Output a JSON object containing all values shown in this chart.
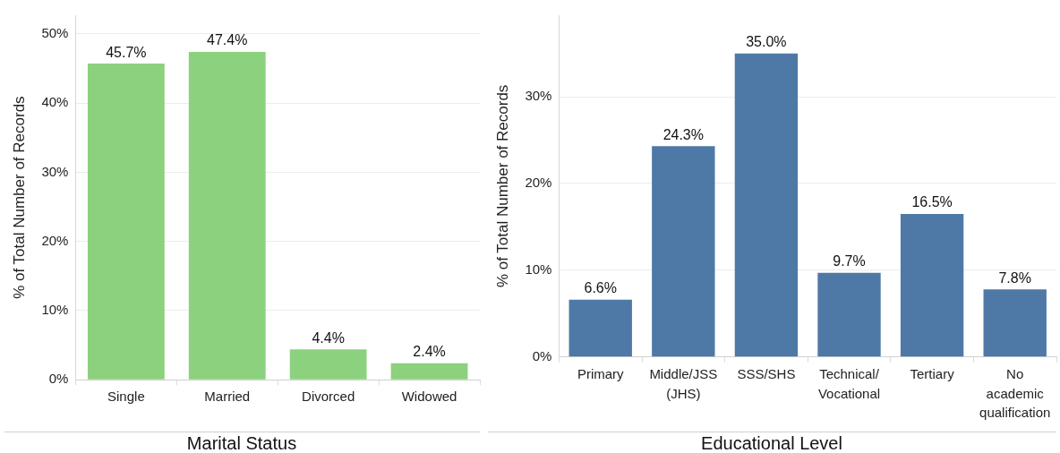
{
  "chart_data": [
    {
      "type": "bar",
      "categories": [
        "Single",
        "Married",
        "Divorced",
        "Widowed"
      ],
      "values": [
        45.7,
        47.4,
        4.4,
        2.4
      ],
      "value_labels": [
        "45.7%",
        "47.4%",
        "4.4%",
        "2.4%"
      ],
      "color": "#8cd17d",
      "xlabel": "Marital Status",
      "ylabel": "% of Total Number of Records",
      "ylim": [
        0,
        52.7
      ],
      "yticks": [
        {
          "value": 0,
          "label": "0%"
        },
        {
          "value": 10,
          "label": "10%"
        },
        {
          "value": 20,
          "label": "20%"
        },
        {
          "value": 30,
          "label": "30%"
        },
        {
          "value": 40,
          "label": "40%"
        },
        {
          "value": 50,
          "label": "50%"
        }
      ],
      "grid": "y"
    },
    {
      "type": "bar",
      "categories": [
        "Primary",
        "Middle/JSS (JHS)",
        "SSS/SHS",
        "Technical/Vocational",
        "Tertiary",
        "No academic qualification"
      ],
      "values": [
        6.6,
        24.3,
        35.0,
        9.7,
        16.5,
        7.8
      ],
      "value_labels": [
        "6.6%",
        "24.3%",
        "35.0%",
        "9.7%",
        "16.5%",
        "7.8%"
      ],
      "color": "#4e79a7",
      "xlabel": "Educational Level",
      "ylabel": "% of Total Number of Records",
      "ylim": [
        0,
        39.4
      ],
      "yticks": [
        {
          "value": 0,
          "label": "0%"
        },
        {
          "value": 10,
          "label": "10%"
        },
        {
          "value": 20,
          "label": "20%"
        },
        {
          "value": 30,
          "label": "30%"
        }
      ],
      "grid": "y"
    }
  ]
}
